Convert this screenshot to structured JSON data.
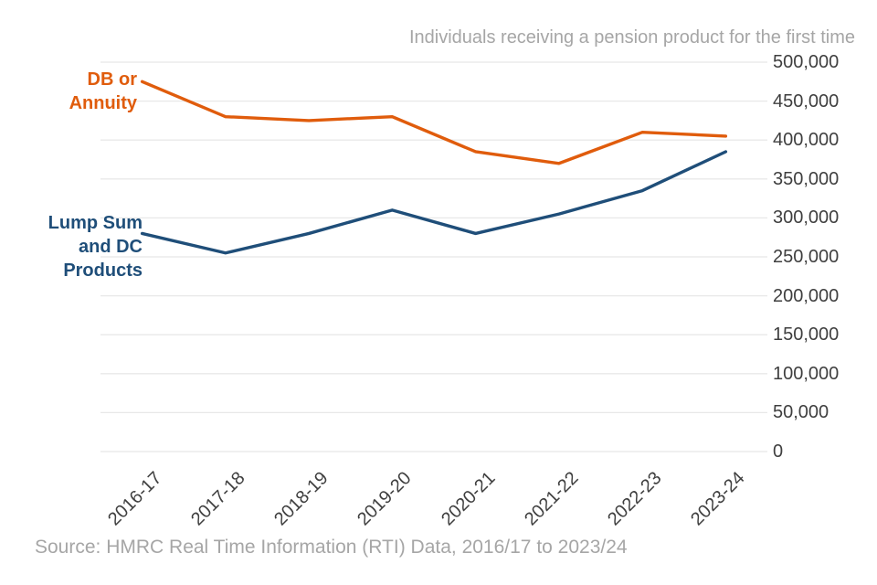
{
  "title": "Individuals receiving a pension product for the first time",
  "source": "Source: HMRC Real Time Information (RTI) Data, 2016/17 to 2023/24",
  "series_labels": {
    "db_annuity": "DB or\nAnnuity",
    "lump_sum": "Lump Sum\nand DC\nProducts"
  },
  "colors": {
    "db_annuity": "#e05c0c",
    "lump_sum": "#1f4e79",
    "title_gray": "#a6a6a6",
    "axis_text": "#3f3f3f",
    "gridline": "#e8e8e8"
  },
  "chart_data": {
    "type": "line",
    "title": "Individuals receiving a pension product for the first time",
    "categories": [
      "2016-17",
      "2017-18",
      "2018-19",
      "2019-20",
      "2020-21",
      "2021-22",
      "2022-23",
      "2023-24"
    ],
    "series": [
      {
        "name": "DB or Annuity",
        "color": "#e05c0c",
        "values": [
          475000,
          430000,
          425000,
          430000,
          385000,
          370000,
          410000,
          405000
        ]
      },
      {
        "name": "Lump Sum and DC Products",
        "color": "#1f4e79",
        "values": [
          280000,
          255000,
          280000,
          310000,
          280000,
          305000,
          335000,
          385000
        ]
      }
    ],
    "xlabel": "",
    "ylabel": "",
    "ylim": [
      0,
      500000
    ],
    "ytick_step": 50000,
    "ytick_labels": [
      "0",
      "50,000",
      "100,000",
      "150,000",
      "200,000",
      "250,000",
      "300,000",
      "350,000",
      "400,000",
      "450,000",
      "500,000"
    ],
    "grid": true,
    "legend_position": "direct-labels-left",
    "annotation": "Source: HMRC Real Time Information (RTI) Data, 2016/17 to 2023/24"
  }
}
